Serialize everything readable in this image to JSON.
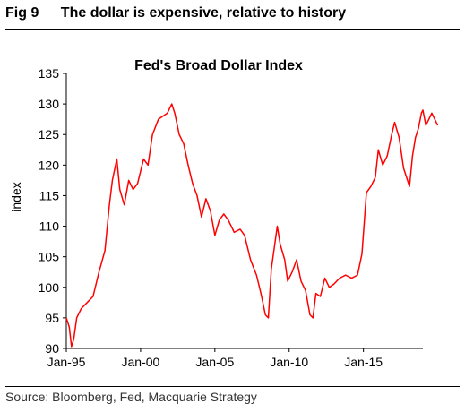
{
  "figure": {
    "label": "Fig 9",
    "caption": "The dollar is expensive, relative to history",
    "source": "Source: Bloomberg, Fed, Macquarie Strategy"
  },
  "colors": {
    "line": "#ff0000",
    "axis": "#000000"
  },
  "chart_data": {
    "type": "line",
    "title": "Fed's Broad Dollar Index",
    "xlabel": "",
    "ylabel": "index",
    "ylim": [
      90,
      135
    ],
    "xlim": [
      1995.0,
      2019.0
    ],
    "grid": false,
    "legend": "none",
    "yticks": [
      90,
      95,
      100,
      105,
      110,
      115,
      120,
      125,
      130,
      135
    ],
    "xticks": [
      {
        "label": "Jan-95",
        "value": 1995.0
      },
      {
        "label": "Jan-00",
        "value": 2000.0
      },
      {
        "label": "Jan-05",
        "value": 2005.0
      },
      {
        "label": "Jan-10",
        "value": 2010.0
      },
      {
        "label": "Jan-15",
        "value": 2015.0
      }
    ],
    "series": [
      {
        "name": "",
        "points": [
          [
            1995.0,
            95.0
          ],
          [
            1995.2,
            93.5
          ],
          [
            1995.35,
            90.3
          ],
          [
            1995.5,
            91.5
          ],
          [
            1995.7,
            95.0
          ],
          [
            1996.0,
            96.5
          ],
          [
            1996.4,
            97.5
          ],
          [
            1996.8,
            98.5
          ],
          [
            1997.2,
            102.5
          ],
          [
            1997.6,
            106.0
          ],
          [
            1997.9,
            113.5
          ],
          [
            1998.1,
            117.5
          ],
          [
            1998.4,
            121.0
          ],
          [
            1998.6,
            116.0
          ],
          [
            1998.9,
            113.5
          ],
          [
            1999.2,
            117.5
          ],
          [
            1999.5,
            116.0
          ],
          [
            1999.8,
            117.0
          ],
          [
            2000.2,
            121.0
          ],
          [
            2000.5,
            120.0
          ],
          [
            2000.8,
            125.0
          ],
          [
            2001.2,
            127.5
          ],
          [
            2001.5,
            128.0
          ],
          [
            2001.8,
            128.5
          ],
          [
            2002.1,
            130.0
          ],
          [
            2002.3,
            128.5
          ],
          [
            2002.6,
            125.0
          ],
          [
            2002.9,
            123.5
          ],
          [
            2003.2,
            120.0
          ],
          [
            2003.5,
            117.0
          ],
          [
            2003.8,
            115.0
          ],
          [
            2004.1,
            111.5
          ],
          [
            2004.4,
            114.5
          ],
          [
            2004.7,
            112.5
          ],
          [
            2005.0,
            108.5
          ],
          [
            2005.3,
            111.0
          ],
          [
            2005.6,
            112.0
          ],
          [
            2005.9,
            111.0
          ],
          [
            2006.3,
            109.0
          ],
          [
            2006.7,
            109.5
          ],
          [
            2007.0,
            108.5
          ],
          [
            2007.4,
            104.5
          ],
          [
            2007.8,
            102.0
          ],
          [
            2008.1,
            99.0
          ],
          [
            2008.4,
            95.5
          ],
          [
            2008.6,
            95.0
          ],
          [
            2008.8,
            103.0
          ],
          [
            2009.0,
            106.5
          ],
          [
            2009.2,
            110.0
          ],
          [
            2009.4,
            107.0
          ],
          [
            2009.7,
            104.5
          ],
          [
            2009.9,
            101.0
          ],
          [
            2010.2,
            102.5
          ],
          [
            2010.5,
            104.5
          ],
          [
            2010.8,
            101.0
          ],
          [
            2011.1,
            99.5
          ],
          [
            2011.4,
            95.5
          ],
          [
            2011.6,
            95.0
          ],
          [
            2011.8,
            99.0
          ],
          [
            2012.1,
            98.5
          ],
          [
            2012.4,
            101.5
          ],
          [
            2012.7,
            100.0
          ],
          [
            2013.0,
            100.5
          ],
          [
            2013.4,
            101.5
          ],
          [
            2013.8,
            102.0
          ],
          [
            2014.2,
            101.5
          ],
          [
            2014.6,
            102.0
          ],
          [
            2014.9,
            105.5
          ],
          [
            2015.2,
            115.5
          ],
          [
            2015.5,
            116.5
          ],
          [
            2015.8,
            118.0
          ],
          [
            2016.0,
            122.5
          ],
          [
            2016.3,
            120.0
          ],
          [
            2016.6,
            121.5
          ],
          [
            2016.9,
            125.0
          ],
          [
            2017.1,
            127.0
          ],
          [
            2017.4,
            124.5
          ],
          [
            2017.7,
            119.5
          ],
          [
            2017.9,
            118.0
          ],
          [
            2018.1,
            116.5
          ],
          [
            2018.3,
            121.5
          ],
          [
            2018.5,
            124.5
          ],
          [
            2018.7,
            126.0
          ],
          [
            2018.9,
            128.5
          ],
          [
            2019.0,
            129.0
          ],
          [
            2019.2,
            126.5
          ],
          [
            2019.4,
            127.5
          ],
          [
            2019.6,
            128.5
          ],
          [
            2019.8,
            127.5
          ],
          [
            2020.0,
            126.5
          ]
        ]
      }
    ]
  }
}
